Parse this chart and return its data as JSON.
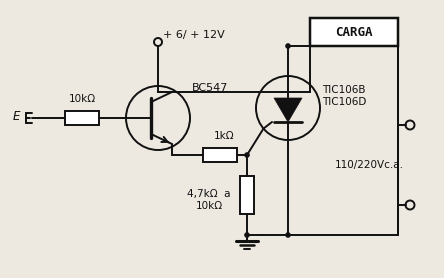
{
  "bg_color": "#ede8e0",
  "line_color": "#111111",
  "labels": {
    "supply": "+ 6/ + 12V",
    "transistor_npn": "BC547",
    "resistor_input": "10kΩ",
    "resistor_1k": "1kΩ",
    "resistor_pot": "4,7kΩ  a\n10kΩ",
    "thyristor": "TIC106B\nTIC106D",
    "voltage_ac": "110/220Vc.a.",
    "load_box": "CARGA",
    "input_label": "E"
  },
  "figsize": [
    4.44,
    2.78
  ],
  "dpi": 100
}
